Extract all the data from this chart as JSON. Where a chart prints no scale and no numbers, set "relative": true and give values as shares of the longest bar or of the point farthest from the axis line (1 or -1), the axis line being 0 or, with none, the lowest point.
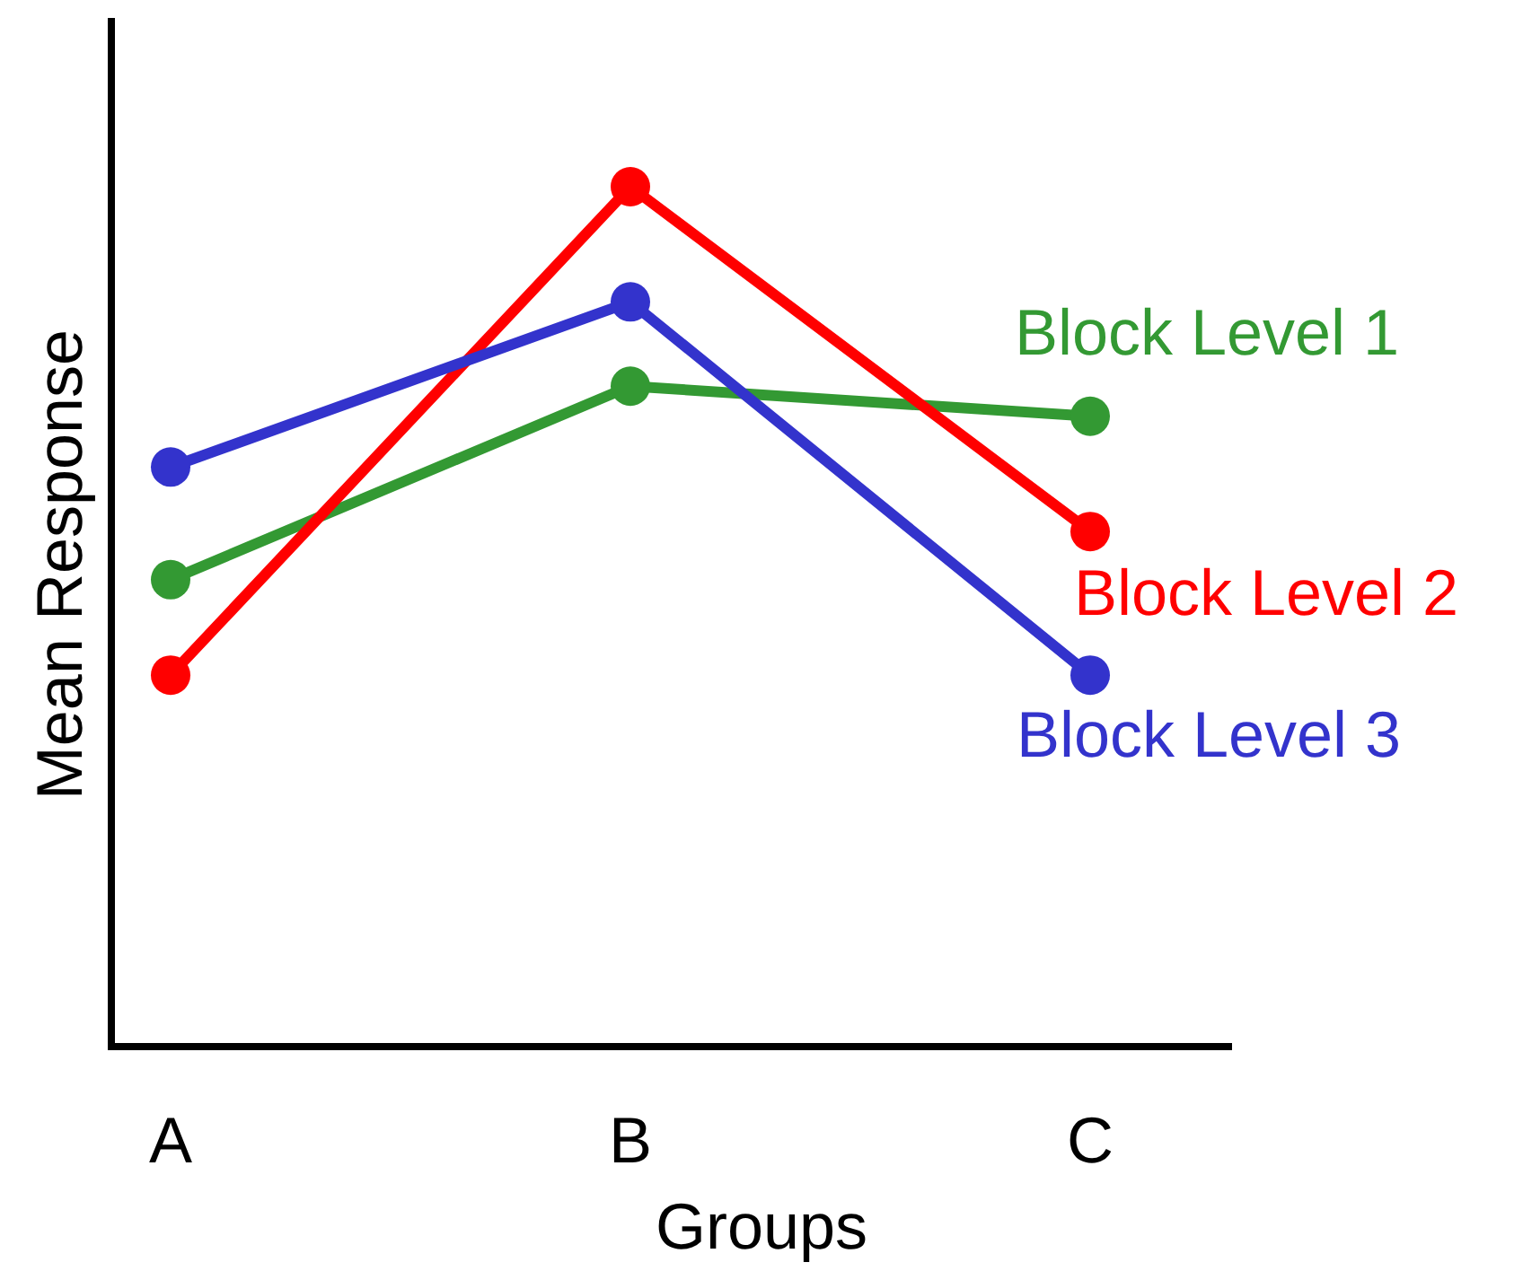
{
  "chart_data": {
    "type": "line",
    "relative": true,
    "xlabel": "Groups",
    "ylabel": "Mean Response",
    "categories": [
      "A",
      "B",
      "C"
    ],
    "marker": "circle",
    "line_style": "solid",
    "series": [
      {
        "name": "Block Level 1",
        "color": "#339933",
        "values": [
          0.543,
          0.768,
          0.733
        ]
      },
      {
        "name": "Block Level 2",
        "color": "#ff0000",
        "values": [
          0.432,
          1,
          0.599
        ]
      },
      {
        "name": "Block Level 3",
        "color": "#3333cc",
        "values": [
          0.674,
          0.866,
          0.432
        ]
      }
    ]
  }
}
